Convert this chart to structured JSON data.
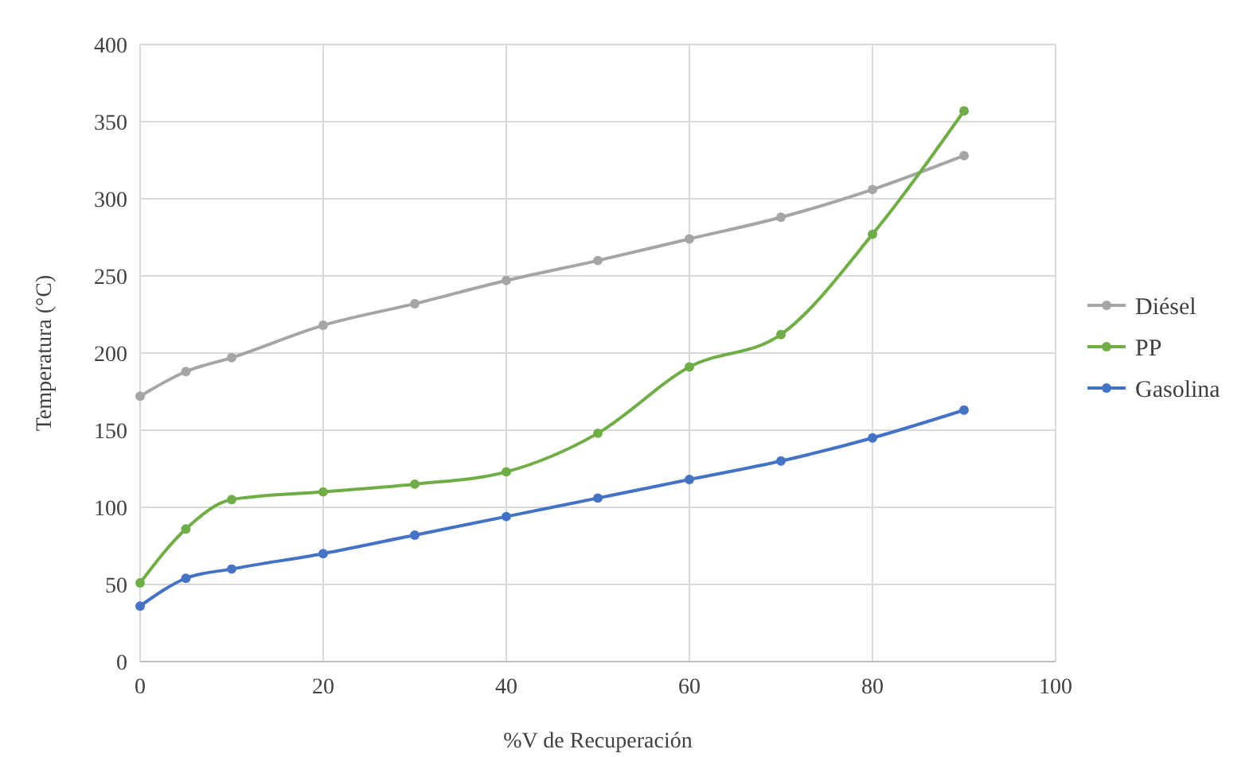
{
  "chart_data": {
    "type": "line",
    "xlabel": "%V de Recuperación",
    "ylabel": "Temperatura (°C)",
    "x": [
      0,
      5,
      10,
      20,
      30,
      40,
      50,
      60,
      70,
      80,
      90
    ],
    "series": [
      {
        "name": "Diésel",
        "color": "#a5a5a5",
        "values": [
          172,
          188,
          197,
          218,
          232,
          247,
          260,
          274,
          288,
          306,
          328
        ]
      },
      {
        "name": "PP",
        "color": "#70ad47",
        "values": [
          51,
          86,
          105,
          110,
          115,
          123,
          148,
          191,
          212,
          277,
          357
        ]
      },
      {
        "name": "Gasolina",
        "color": "#4472c4",
        "values": [
          36,
          54,
          60,
          70,
          82,
          94,
          106,
          118,
          130,
          145,
          163
        ]
      }
    ],
    "xlim": [
      0,
      100
    ],
    "xticks": [
      0,
      20,
      40,
      60,
      80,
      100
    ],
    "ylim": [
      0,
      400
    ],
    "yticks": [
      0,
      50,
      100,
      150,
      200,
      250,
      300,
      350,
      400
    ],
    "grid": true,
    "legend": "right",
    "marker": "circle",
    "line_style": "solid"
  }
}
